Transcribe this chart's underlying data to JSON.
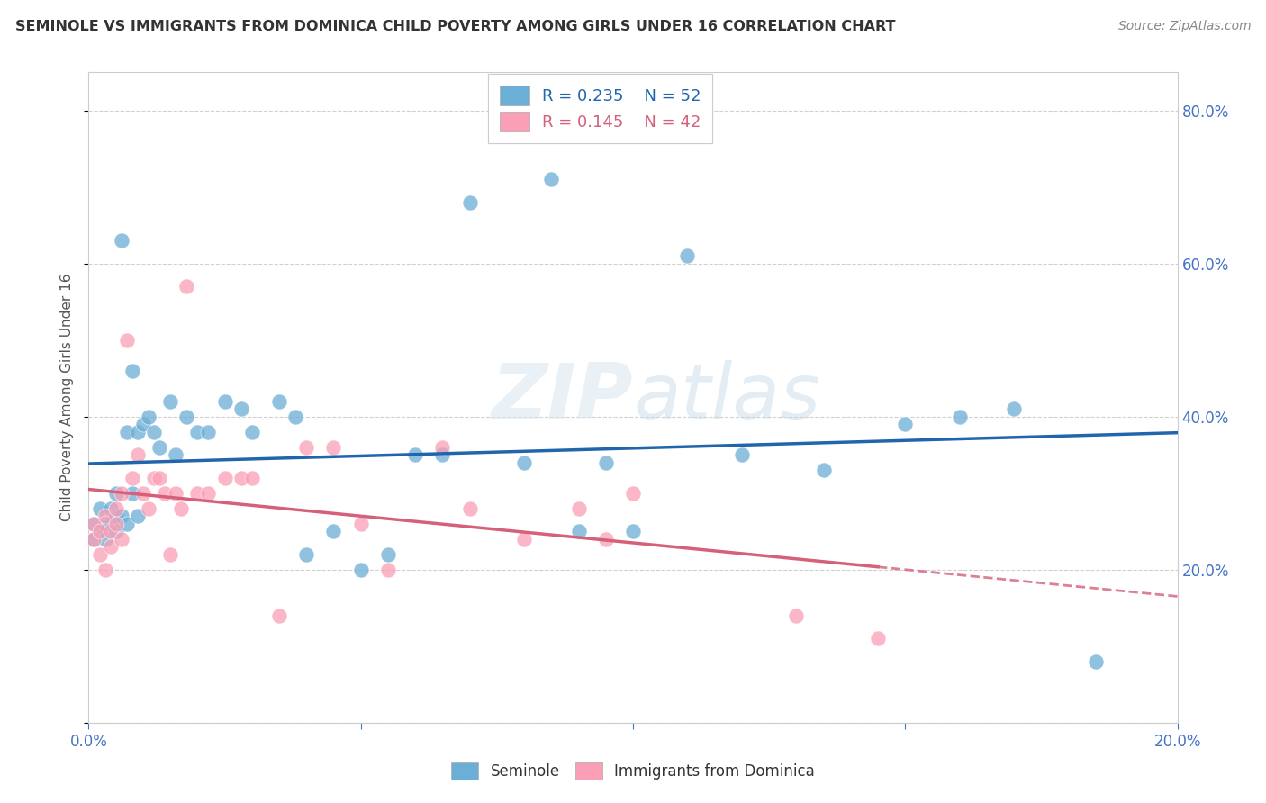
{
  "title": "SEMINOLE VS IMMIGRANTS FROM DOMINICA CHILD POVERTY AMONG GIRLS UNDER 16 CORRELATION CHART",
  "source": "Source: ZipAtlas.com",
  "ylabel": "Child Poverty Among Girls Under 16",
  "xlim": [
    0.0,
    0.2
  ],
  "ylim": [
    0.0,
    0.85
  ],
  "seminole_color": "#6baed6",
  "dominica_color": "#fa9fb5",
  "seminole_line_color": "#2166ac",
  "dominica_line_color": "#d4607a",
  "legend_R1": "R = 0.235",
  "legend_N1": "N = 52",
  "legend_R2": "R = 0.145",
  "legend_N2": "N = 42",
  "legend_label1": "Seminole",
  "legend_label2": "Immigrants from Dominica",
  "seminole_x": [
    0.001,
    0.001,
    0.002,
    0.002,
    0.003,
    0.003,
    0.004,
    0.004,
    0.005,
    0.005,
    0.005,
    0.006,
    0.006,
    0.007,
    0.007,
    0.008,
    0.008,
    0.009,
    0.009,
    0.01,
    0.011,
    0.012,
    0.013,
    0.015,
    0.016,
    0.018,
    0.02,
    0.022,
    0.025,
    0.028,
    0.03,
    0.035,
    0.038,
    0.04,
    0.045,
    0.05,
    0.055,
    0.06,
    0.065,
    0.07,
    0.08,
    0.085,
    0.09,
    0.095,
    0.1,
    0.11,
    0.12,
    0.135,
    0.15,
    0.16,
    0.17,
    0.185
  ],
  "seminole_y": [
    0.26,
    0.24,
    0.28,
    0.25,
    0.26,
    0.24,
    0.28,
    0.26,
    0.3,
    0.27,
    0.25,
    0.63,
    0.27,
    0.38,
    0.26,
    0.46,
    0.3,
    0.38,
    0.27,
    0.39,
    0.4,
    0.38,
    0.36,
    0.42,
    0.35,
    0.4,
    0.38,
    0.38,
    0.42,
    0.41,
    0.38,
    0.42,
    0.4,
    0.22,
    0.25,
    0.2,
    0.22,
    0.35,
    0.35,
    0.68,
    0.34,
    0.71,
    0.25,
    0.34,
    0.25,
    0.61,
    0.35,
    0.33,
    0.39,
    0.4,
    0.41,
    0.08
  ],
  "dominica_x": [
    0.001,
    0.001,
    0.002,
    0.002,
    0.003,
    0.003,
    0.004,
    0.004,
    0.005,
    0.005,
    0.006,
    0.006,
    0.007,
    0.008,
    0.009,
    0.01,
    0.011,
    0.012,
    0.013,
    0.014,
    0.015,
    0.016,
    0.017,
    0.018,
    0.02,
    0.022,
    0.025,
    0.028,
    0.03,
    0.035,
    0.04,
    0.045,
    0.05,
    0.055,
    0.065,
    0.07,
    0.08,
    0.09,
    0.095,
    0.1,
    0.13,
    0.145
  ],
  "dominica_y": [
    0.26,
    0.24,
    0.25,
    0.22,
    0.2,
    0.27,
    0.25,
    0.23,
    0.28,
    0.26,
    0.3,
    0.24,
    0.5,
    0.32,
    0.35,
    0.3,
    0.28,
    0.32,
    0.32,
    0.3,
    0.22,
    0.3,
    0.28,
    0.57,
    0.3,
    0.3,
    0.32,
    0.32,
    0.32,
    0.14,
    0.36,
    0.36,
    0.26,
    0.2,
    0.36,
    0.28,
    0.24,
    0.28,
    0.24,
    0.3,
    0.14,
    0.11
  ],
  "background_color": "#ffffff",
  "grid_color": "#d0d0d0",
  "tick_color": "#4472c4",
  "axis_color": "#cccccc",
  "watermark": "ZIPatlas"
}
